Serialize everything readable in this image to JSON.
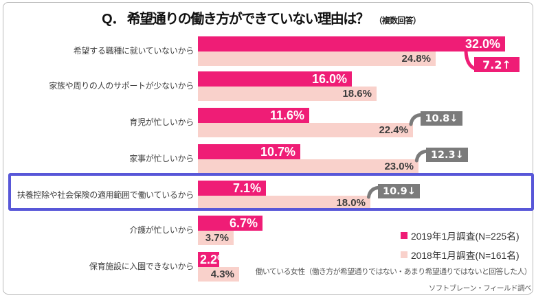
{
  "title": "Q． 希望通りの働き方ができていない理由は？",
  "subtitle": "（複数回答）",
  "colors": {
    "series_2019": "#EF1D76",
    "series_2018": "#F9D1CB",
    "badge_up": "#EF1D76",
    "badge_down": "#7B7B7B",
    "highlight_border": "#5857D8"
  },
  "chart_data": {
    "type": "bar",
    "orientation": "horizontal",
    "unit": "%",
    "xlim": [
      0,
      35
    ],
    "categories": [
      "希望する職種に就いていないから",
      "家族や周りの人のサポートが少ないから",
      "育児が忙しいから",
      "家事が忙しいから",
      "扶養控除や社会保険の適用範囲で働いているから",
      "介護が忙しいから",
      "保育施設に入園できないから"
    ],
    "series": [
      {
        "name": "2019年1月調査(N=225名)",
        "values": [
          32.0,
          16.0,
          11.6,
          10.7,
          7.1,
          6.7,
          2.2
        ]
      },
      {
        "name": "2018年1月調査(N=161名)",
        "values": [
          24.8,
          18.6,
          22.4,
          23.0,
          18.0,
          3.7,
          4.3
        ]
      }
    ],
    "value_labels": [
      [
        "32.0%",
        "16.0%",
        "11.6%",
        "10.7%",
        "7.1%",
        "6.7%",
        "2.2%"
      ],
      [
        "24.8%",
        "18.6%",
        "22.4%",
        "23.0%",
        "18.0%",
        "3.7%",
        "4.3%"
      ]
    ],
    "change_badges": [
      {
        "row": 0,
        "label": "7.2↑",
        "direction": "up"
      },
      {
        "row": 2,
        "label": "10.8↓",
        "direction": "down"
      },
      {
        "row": 3,
        "label": "12.3↓",
        "direction": "down"
      },
      {
        "row": 4,
        "label": "10.9↓",
        "direction": "down"
      }
    ],
    "highlighted_row": 4
  },
  "legend": [
    {
      "label": "2019年1月調査(N=225名)",
      "color": "#EF1D76"
    },
    {
      "label": "2018年1月調査(N=161名)",
      "color": "#F9D1CB"
    }
  ],
  "note": "働いている女性（働き方が希望通りではない・あまり希望通りではないと回答した人）",
  "credit": "ソフトブレーン・フィールド調べ"
}
